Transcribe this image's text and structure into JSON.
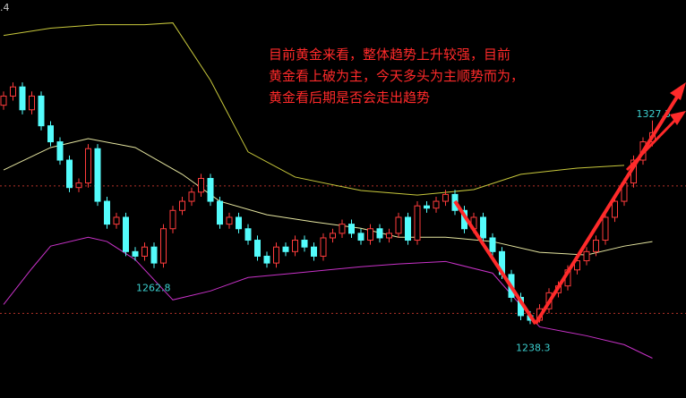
{
  "chart_data": {
    "type": "candlestick",
    "top_label": ".4",
    "annotation_lines": [
      "目前黄金来看，整体趋势上升较强，目前",
      "黄金看上破为主，今天多头为主顺势而为，",
      "黄金看后期是否会走出趋势"
    ],
    "ylim": [
      1206,
      1380
    ],
    "up_color": "#ff3c3c",
    "down_color": "#54fcfc",
    "open": [
      1334,
      1338,
      1342,
      1332,
      1338,
      1325,
      1318,
      1310,
      1298,
      1300,
      1315,
      1292,
      1282,
      1285,
      1270,
      1268,
      1272,
      1265,
      1280,
      1288,
      1292,
      1296,
      1302,
      1292,
      1282,
      1285,
      1280,
      1275,
      1268,
      1265,
      1272,
      1270,
      1275,
      1272,
      1268,
      1276,
      1278,
      1282,
      1278,
      1275,
      1280,
      1276,
      1278,
      1285,
      1275,
      1290,
      1289,
      1292,
      1295,
      1288,
      1280,
      1285,
      1276,
      1270,
      1260,
      1250,
      1242,
      1240,
      1245,
      1252,
      1255,
      1262,
      1266,
      1270,
      1275,
      1285,
      1292,
      1300,
      1310,
      1318
    ],
    "high": [
      1340,
      1344,
      1344,
      1340,
      1340,
      1327,
      1320,
      1312,
      1302,
      1317,
      1317,
      1294,
      1287,
      1287,
      1272,
      1274,
      1274,
      1282,
      1290,
      1294,
      1298,
      1304,
      1304,
      1294,
      1287,
      1287,
      1282,
      1277,
      1270,
      1274,
      1274,
      1277,
      1277,
      1274,
      1278,
      1280,
      1284,
      1284,
      1280,
      1282,
      1282,
      1280,
      1287,
      1287,
      1292,
      1292,
      1294,
      1297,
      1297,
      1290,
      1287,
      1287,
      1278,
      1272,
      1262,
      1252,
      1244,
      1247,
      1254,
      1257,
      1264,
      1268,
      1272,
      1277,
      1287,
      1294,
      1302,
      1312,
      1320,
      1327.3
    ],
    "low": [
      1332,
      1336,
      1330,
      1330,
      1323,
      1316,
      1308,
      1296,
      1296,
      1298,
      1290,
      1280,
      1280,
      1268,
      1266,
      1266,
      1262.8,
      1263,
      1278,
      1286,
      1290,
      1294,
      1290,
      1280,
      1280,
      1278,
      1273,
      1266,
      1263,
      1263,
      1268,
      1268,
      1270,
      1266,
      1266,
      1274,
      1276,
      1276,
      1273,
      1273,
      1274,
      1274,
      1276,
      1273,
      1273,
      1287,
      1287,
      1290,
      1286,
      1278,
      1278,
      1274,
      1268,
      1258,
      1248,
      1240,
      1238.3,
      1239,
      1243,
      1250,
      1253,
      1260,
      1264,
      1268,
      1273,
      1283,
      1290,
      1298,
      1308,
      1316
    ],
    "close": [
      1338,
      1342,
      1332,
      1338,
      1325,
      1318,
      1310,
      1298,
      1300,
      1315,
      1292,
      1282,
      1285,
      1270,
      1268,
      1272,
      1265,
      1280,
      1288,
      1292,
      1296,
      1302,
      1292,
      1282,
      1285,
      1280,
      1275,
      1268,
      1265,
      1272,
      1270,
      1275,
      1272,
      1268,
      1276,
      1278,
      1282,
      1278,
      1275,
      1280,
      1276,
      1278,
      1285,
      1275,
      1290,
      1289,
      1292,
      1295,
      1288,
      1280,
      1285,
      1276,
      1270,
      1260,
      1250,
      1242,
      1240,
      1245,
      1252,
      1255,
      1262,
      1266,
      1270,
      1275,
      1285,
      1292,
      1300,
      1310,
      1318,
      1322
    ],
    "bands": [
      {
        "color": "#c8c83c",
        "x": [
          0,
          5,
          10,
          15,
          18,
          22,
          26,
          31,
          38,
          44,
          50,
          55,
          61,
          66
        ],
        "values": [
          1364.5,
          1367.7,
          1369.2,
          1369.2,
          1370,
          1344.9,
          1313.6,
          1302.6,
          1296.7,
          1294.7,
          1297.1,
          1303.8,
          1306.5,
          1307.7
        ]
      },
      {
        "color": "#e6e6a0",
        "x": [
          0,
          5,
          9,
          14,
          19,
          23,
          28,
          33,
          38,
          42,
          47,
          52,
          57,
          62,
          66,
          69
        ],
        "values": [
          1305.7,
          1315.5,
          1319.4,
          1315.5,
          1303.8,
          1292,
          1286.1,
          1283,
          1280.2,
          1276.3,
          1276.3,
          1274.4,
          1269.7,
          1268.5,
          1272.4,
          1274.4
        ]
      },
      {
        "color": "#c832c8",
        "x": [
          0,
          3,
          5,
          9,
          11,
          14,
          18,
          22,
          26,
          31,
          38,
          42,
          47,
          52,
          57,
          62,
          66,
          69
        ],
        "values": [
          1246.9,
          1262.6,
          1272.4,
          1276.3,
          1274.4,
          1266.5,
          1248.9,
          1252.8,
          1258.7,
          1260.6,
          1263.4,
          1264.6,
          1265.7,
          1260.6,
          1237.1,
          1233.2,
          1229.3,
          1223.4
        ]
      }
    ],
    "ref_lines": [
      1298.7,
      1243
    ],
    "ref_color": "#b4322a"
  }
}
